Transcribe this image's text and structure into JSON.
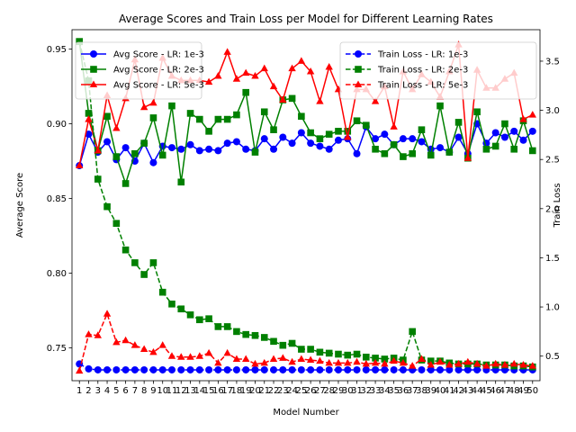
{
  "chart_data": {
    "type": "line",
    "title": "Average Scores and Train Loss per Model for Different Learning Rates",
    "xlabel": "Model Number",
    "ylabel_left": "Average Score",
    "ylabel_right": "Train Loss",
    "x": [
      1,
      2,
      3,
      4,
      5,
      6,
      7,
      8,
      9,
      10,
      11,
      12,
      13,
      14,
      15,
      16,
      17,
      18,
      19,
      20,
      21,
      22,
      23,
      24,
      25,
      26,
      27,
      28,
      29,
      30,
      31,
      32,
      33,
      34,
      35,
      36,
      37,
      38,
      39,
      40,
      41,
      42,
      43,
      44,
      45,
      46,
      47,
      48,
      49,
      50
    ],
    "x_tick_labels": [
      "1",
      "2",
      "3",
      "4",
      "5",
      "6",
      "7",
      "8",
      "9",
      "10",
      "11",
      "12",
      "13",
      "14",
      "15",
      "16",
      "17",
      "18",
      "19",
      "20",
      "21",
      "22",
      "23",
      "24",
      "25",
      "26",
      "27",
      "28",
      "29",
      "30",
      "31",
      "32",
      "33",
      "34",
      "35",
      "36",
      "37",
      "38",
      "39",
      "40",
      "41",
      "42",
      "43",
      "44",
      "45",
      "46",
      "47",
      "48",
      "49",
      "50"
    ],
    "ylim_left": [
      0.728,
      0.963
    ],
    "yticks_left": [
      "0.75",
      "0.80",
      "0.85",
      "0.90",
      "0.95"
    ],
    "ylim_right": [
      0.25,
      3.82
    ],
    "yticks_right": [
      "0.5",
      "1.0",
      "1.5",
      "2.0",
      "2.5",
      "3.0",
      "3.5"
    ],
    "grid": false,
    "legend_left_position": "top-left",
    "legend_right_position": "top-right",
    "score_series": [
      {
        "name": "Avg Score - LR: 1e-3",
        "color": "#0000ff",
        "linestyle": "solid",
        "marker": "circle",
        "values": [
          0.872,
          0.893,
          0.881,
          0.888,
          0.876,
          0.884,
          0.875,
          0.887,
          0.874,
          0.885,
          0.884,
          0.883,
          0.886,
          0.882,
          0.883,
          0.882,
          0.887,
          0.888,
          0.883,
          0.882,
          0.89,
          0.883,
          0.891,
          0.887,
          0.894,
          0.887,
          0.885,
          0.883,
          0.889,
          0.89,
          0.88,
          0.898,
          0.89,
          0.893,
          0.886,
          0.89,
          0.89,
          0.888,
          0.883,
          0.884,
          0.881,
          0.891,
          0.88,
          0.9,
          0.887,
          0.894,
          0.891,
          0.895,
          0.889,
          0.895
        ]
      },
      {
        "name": "Avg Score - LR: 2e-3",
        "color": "#008000",
        "linestyle": "solid",
        "marker": "square",
        "values": [
          0.955,
          0.907,
          0.882,
          0.905,
          0.878,
          0.86,
          0.88,
          0.887,
          0.904,
          0.879,
          0.912,
          0.861,
          0.907,
          0.903,
          0.895,
          0.903,
          0.903,
          0.906,
          0.921,
          0.881,
          0.908,
          0.896,
          0.916,
          0.917,
          0.905,
          0.894,
          0.89,
          0.893,
          0.895,
          0.895,
          0.902,
          0.899,
          0.883,
          0.88,
          0.886,
          0.878,
          0.88,
          0.896,
          0.879,
          0.912,
          0.881,
          0.901,
          0.877,
          0.908,
          0.883,
          0.885,
          0.9,
          0.883,
          0.902,
          0.882
        ]
      },
      {
        "name": "Avg Score - LR: 5e-3",
        "color": "#ff0000",
        "linestyle": "solid",
        "marker": "triangle",
        "values": [
          0.872,
          0.903,
          0.882,
          0.919,
          0.897,
          0.917,
          0.943,
          0.911,
          0.914,
          0.944,
          0.932,
          0.929,
          0.929,
          0.929,
          0.928,
          0.932,
          0.948,
          0.93,
          0.934,
          0.932,
          0.937,
          0.925,
          0.916,
          0.937,
          0.942,
          0.935,
          0.915,
          0.938,
          0.923,
          0.891,
          0.923,
          0.923,
          0.915,
          0.925,
          0.898,
          0.935,
          0.923,
          0.933,
          0.928,
          0.918,
          0.935,
          0.953,
          0.877,
          0.936,
          0.924,
          0.924,
          0.93,
          0.934,
          0.903,
          0.906
        ]
      }
    ],
    "loss_series": [
      {
        "name": "Train Loss - LR: 1e-3",
        "color": "#0000ff",
        "linestyle": "dashed",
        "marker": "circle",
        "values": [
          0.42,
          0.37,
          0.36,
          0.36,
          0.36,
          0.36,
          0.36,
          0.36,
          0.36,
          0.36,
          0.36,
          0.36,
          0.36,
          0.36,
          0.36,
          0.36,
          0.36,
          0.36,
          0.36,
          0.36,
          0.36,
          0.36,
          0.36,
          0.36,
          0.36,
          0.36,
          0.36,
          0.36,
          0.36,
          0.36,
          0.36,
          0.36,
          0.36,
          0.36,
          0.36,
          0.36,
          0.36,
          0.36,
          0.36,
          0.36,
          0.36,
          0.36,
          0.36,
          0.36,
          0.36,
          0.36,
          0.36,
          0.36,
          0.36,
          0.36
        ]
      },
      {
        "name": "Train Loss - LR: 2e-3",
        "color": "#008000",
        "linestyle": "dashed",
        "marker": "square",
        "values": [
          3.7,
          3.3,
          2.3,
          2.02,
          1.85,
          1.58,
          1.45,
          1.33,
          1.45,
          1.15,
          1.03,
          0.98,
          0.92,
          0.87,
          0.88,
          0.8,
          0.8,
          0.75,
          0.72,
          0.71,
          0.69,
          0.65,
          0.61,
          0.63,
          0.57,
          0.57,
          0.54,
          0.53,
          0.52,
          0.51,
          0.52,
          0.49,
          0.48,
          0.47,
          0.48,
          0.46,
          0.75,
          0.46,
          0.45,
          0.45,
          0.43,
          0.42,
          0.42,
          0.42,
          0.41,
          0.41,
          0.41,
          0.4,
          0.4,
          0.39
        ]
      },
      {
        "name": "Train Loss - LR: 5e-3",
        "color": "#ff0000",
        "linestyle": "dashed",
        "marker": "triangle",
        "values": [
          0.35,
          0.72,
          0.71,
          0.93,
          0.64,
          0.66,
          0.61,
          0.57,
          0.54,
          0.61,
          0.5,
          0.49,
          0.49,
          0.5,
          0.53,
          0.43,
          0.53,
          0.47,
          0.47,
          0.42,
          0.43,
          0.47,
          0.48,
          0.44,
          0.47,
          0.46,
          0.45,
          0.43,
          0.43,
          0.43,
          0.44,
          0.42,
          0.43,
          0.42,
          0.45,
          0.43,
          0.4,
          0.47,
          0.41,
          0.44,
          0.41,
          0.42,
          0.44,
          0.42,
          0.4,
          0.42,
          0.41,
          0.42,
          0.41,
          0.4
        ]
      }
    ]
  }
}
